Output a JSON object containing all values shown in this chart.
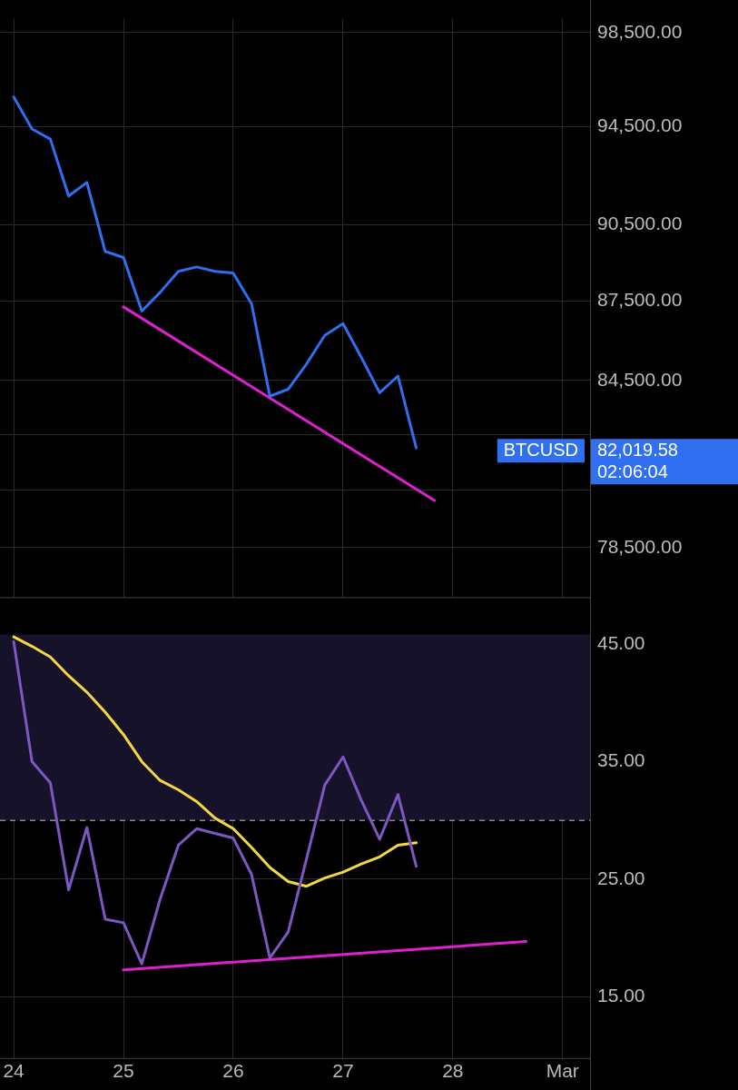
{
  "chart_data": [
    {
      "type": "line",
      "log": "y",
      "grid": true,
      "tick_labels": "y",
      "xlim": [
        "--02-23T21:00",
        "--03-01T06:00"
      ],
      "xticks": [
        {
          "value": "--02-24",
          "label": "24"
        },
        {
          "value": "--02-25",
          "label": "25"
        },
        {
          "value": "--02-26",
          "label": "26"
        },
        {
          "value": "--02-27",
          "label": "27"
        },
        {
          "value": "--02-28",
          "label": "28"
        },
        {
          "value": "--03-01",
          "label": "Mar"
        }
      ],
      "ylim": [
        76800,
        99100
      ],
      "yticks": [
        {
          "value": 78500,
          "label": "78,500.00"
        },
        {
          "value": 80500,
          "label": null
        },
        {
          "value": 82500,
          "label": null
        },
        {
          "value": 84500,
          "label": "84,500.00"
        },
        {
          "value": 87500,
          "label": "87,500.00"
        },
        {
          "value": 90500,
          "label": "90,500.00"
        },
        {
          "value": 94500,
          "label": "94,500.00"
        },
        {
          "value": 98500,
          "label": "98,500.00"
        }
      ],
      "series": [
        {
          "name": "BTCUSD",
          "color": "#2f6ff0",
          "x": [
            "--02-24T00:00",
            "--02-24T04:00",
            "--02-24T08:00",
            "--02-24T12:00",
            "--02-24T16:00",
            "--02-24T20:00",
            "--02-25T00:00",
            "--02-25T04:00",
            "--02-25T08:00",
            "--02-25T12:00",
            "--02-25T16:00",
            "--02-25T20:00",
            "--02-26T00:00",
            "--02-26T04:00",
            "--02-26T08:00",
            "--02-26T12:00",
            "--02-26T16:00",
            "--02-26T20:00",
            "--02-27T00:00",
            "--02-27T04:00",
            "--02-27T08:00",
            "--02-27T12:00",
            "--02-27T16:00"
          ],
          "values": [
            95740,
            94400,
            93980,
            91650,
            92200,
            89440,
            89200,
            87120,
            87840,
            88660,
            88830,
            88660,
            88590,
            87400,
            83910,
            84170,
            85110,
            86190,
            86640,
            85360,
            84040,
            84660,
            82019.58
          ]
        },
        {
          "type": "line",
          "color": "#e020d0",
          "x": [
            "--02-25T00:00",
            "--02-27T20:00"
          ],
          "values": [
            87280,
            80140
          ]
        }
      ],
      "annotations": [
        "82,019.58",
        "02:06:04"
      ]
    },
    {
      "type": "line",
      "grid": true,
      "xlim": [
        "--02-23T21:00",
        "--03-01T06:00"
      ],
      "xticks": [
        {
          "value": "--02-24",
          "label": "24"
        },
        {
          "value": "--02-25",
          "label": "25"
        },
        {
          "value": "--02-26",
          "label": "26"
        },
        {
          "value": "--02-27",
          "label": "27"
        },
        {
          "value": "--02-28",
          "label": "28"
        },
        {
          "value": "--03-01",
          "label": "Mar"
        }
      ],
      "ylim": [
        9.8,
        45.8
      ],
      "yticks": [
        {
          "value": 15,
          "label": "15.00"
        },
        {
          "value": 25,
          "label": "25.00"
        },
        {
          "value": 35,
          "label": "35.00"
        },
        {
          "value": 45,
          "label": "45.00"
        }
      ],
      "ref_lines": [
        {
          "axis": "y",
          "value": 30,
          "color": "#888888",
          "line_style": "dashed"
        }
      ],
      "bands": [
        {
          "axis": "y",
          "from": 30,
          "to": 45.8,
          "color": "#16122a"
        }
      ],
      "series": [
        {
          "color": "#7e57c2",
          "x": [
            "--02-24T00:00",
            "--02-24T04:00",
            "--02-24T08:00",
            "--02-24T12:00",
            "--02-24T16:00",
            "--02-24T20:00",
            "--02-25T00:00",
            "--02-25T04:00",
            "--02-25T08:00",
            "--02-25T12:00",
            "--02-25T16:00",
            "--02-25T20:00",
            "--02-26T00:00",
            "--02-26T04:00",
            "--02-26T08:00",
            "--02-26T12:00",
            "--02-26T16:00",
            "--02-26T20:00",
            "--02-27T00:00",
            "--02-27T04:00",
            "--02-27T08:00",
            "--02-27T12:00",
            "--02-27T16:00"
          ],
          "values": [
            45.2,
            35,
            33.2,
            24.1,
            29.4,
            21.6,
            21.3,
            17.8,
            23.3,
            27.9,
            29.3,
            28.9,
            28.5,
            25.4,
            18.3,
            20.5,
            26.7,
            33,
            35.4,
            31.7,
            28.4,
            32.2,
            26.1
          ]
        },
        {
          "color": "#f5d742",
          "x": [
            "--02-24T00:00",
            "--02-24T04:00",
            "--02-24T08:00",
            "--02-24T12:00",
            "--02-24T16:00",
            "--02-24T20:00",
            "--02-25T00:00",
            "--02-25T04:00",
            "--02-25T08:00",
            "--02-25T12:00",
            "--02-25T16:00",
            "--02-25T20:00",
            "--02-26T00:00",
            "--02-26T04:00",
            "--02-26T08:00",
            "--02-26T12:00",
            "--02-26T16:00",
            "--02-26T20:00",
            "--02-27T00:00",
            "--02-27T04:00",
            "--02-27T08:00",
            "--02-27T12:00",
            "--02-27T16:00"
          ],
          "values": [
            45.6,
            44.8,
            43.9,
            42.3,
            40.9,
            39.2,
            37.3,
            35,
            33.4,
            32.6,
            31.6,
            30.2,
            29.3,
            27.7,
            26,
            24.8,
            24.4,
            25.1,
            25.6,
            26.3,
            26.9,
            27.9,
            28.1
          ]
        },
        {
          "color": "#e020d0",
          "x": [
            "--02-25T00:00",
            "--02-28T16:00"
          ],
          "values": [
            17.3,
            19.7
          ]
        }
      ]
    }
  ]
}
